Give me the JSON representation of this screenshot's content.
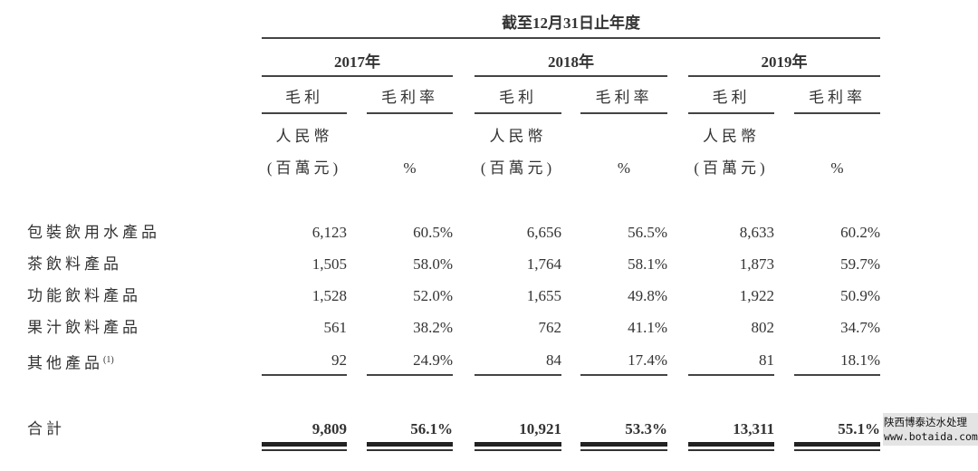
{
  "title": "截至12月31日止年度",
  "years": [
    "2017年",
    "2018年",
    "2019年"
  ],
  "col_headers": {
    "gross_profit": "毛利",
    "gross_margin": "毛利率",
    "currency": "人民幣",
    "unit": "(百萬元)",
    "percent": "%"
  },
  "rows": [
    {
      "label": "包裝飲用水產品",
      "values": [
        "6,123",
        "60.5%",
        "6,656",
        "56.5%",
        "8,633",
        "60.2%"
      ]
    },
    {
      "label": "茶飲料產品",
      "values": [
        "1,505",
        "58.0%",
        "1,764",
        "58.1%",
        "1,873",
        "59.7%"
      ]
    },
    {
      "label": "功能飲料產品",
      "values": [
        "1,528",
        "52.0%",
        "1,655",
        "49.8%",
        "1,922",
        "50.9%"
      ]
    },
    {
      "label": "果汁飲料產品",
      "values": [
        "561",
        "38.2%",
        "762",
        "41.1%",
        "802",
        "34.7%"
      ]
    },
    {
      "label": "其他產品",
      "note": "(1)",
      "values": [
        "92",
        "24.9%",
        "84",
        "17.4%",
        "81",
        "18.1%"
      ]
    }
  ],
  "total": {
    "label": "合計",
    "values": [
      "9,809",
      "56.1%",
      "10,921",
      "53.3%",
      "13,311",
      "55.1%"
    ]
  },
  "watermark": {
    "line1": "陕西博泰达水处理",
    "line2": "www.botaida.com"
  }
}
